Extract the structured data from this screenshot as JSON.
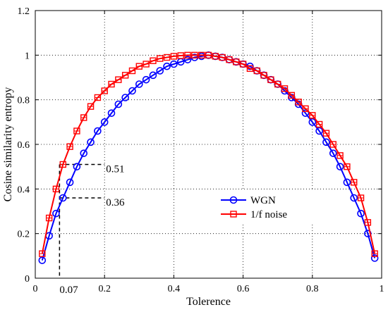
{
  "chart_data": {
    "type": "line",
    "title": "",
    "xlabel": "Tolerence",
    "ylabel": "Cosine similarity entropy",
    "xlim": [
      0,
      1
    ],
    "ylim": [
      0,
      1.2
    ],
    "xticks": [
      "0",
      "0.2",
      "0.4",
      "0.6",
      "0.8",
      "1"
    ],
    "yticks": [
      "0",
      "0.2",
      "0.4",
      "0.6",
      "0.8",
      "1",
      "1.2"
    ],
    "grid": true,
    "legend_position": "center-right",
    "series": [
      {
        "name": "WGN",
        "color": "#0000ff",
        "marker": "circle",
        "x": [
          0.02,
          0.04,
          0.06,
          0.08,
          0.1,
          0.12,
          0.14,
          0.16,
          0.18,
          0.2,
          0.22,
          0.24,
          0.26,
          0.28,
          0.3,
          0.32,
          0.34,
          0.36,
          0.38,
          0.4,
          0.42,
          0.44,
          0.46,
          0.48,
          0.5,
          0.52,
          0.54,
          0.56,
          0.58,
          0.6,
          0.62,
          0.64,
          0.66,
          0.68,
          0.7,
          0.72,
          0.74,
          0.76,
          0.78,
          0.8,
          0.82,
          0.84,
          0.86,
          0.88,
          0.9,
          0.92,
          0.94,
          0.96,
          0.98
        ],
        "y": [
          0.08,
          0.19,
          0.29,
          0.36,
          0.43,
          0.5,
          0.56,
          0.61,
          0.66,
          0.7,
          0.74,
          0.78,
          0.81,
          0.84,
          0.87,
          0.89,
          0.91,
          0.93,
          0.95,
          0.96,
          0.97,
          0.98,
          0.99,
          0.995,
          1.0,
          0.995,
          0.99,
          0.98,
          0.97,
          0.96,
          0.95,
          0.93,
          0.91,
          0.89,
          0.87,
          0.84,
          0.81,
          0.78,
          0.74,
          0.7,
          0.66,
          0.61,
          0.56,
          0.5,
          0.43,
          0.36,
          0.29,
          0.2,
          0.09
        ]
      },
      {
        "name": "1/f noise",
        "color": "#ff0000",
        "marker": "square",
        "x": [
          0.02,
          0.04,
          0.06,
          0.08,
          0.1,
          0.12,
          0.14,
          0.16,
          0.18,
          0.2,
          0.22,
          0.24,
          0.26,
          0.28,
          0.3,
          0.32,
          0.34,
          0.36,
          0.38,
          0.4,
          0.42,
          0.44,
          0.46,
          0.48,
          0.5,
          0.52,
          0.54,
          0.56,
          0.58,
          0.6,
          0.62,
          0.64,
          0.66,
          0.68,
          0.7,
          0.72,
          0.74,
          0.76,
          0.78,
          0.8,
          0.82,
          0.84,
          0.86,
          0.88,
          0.9,
          0.92,
          0.94,
          0.96,
          0.98
        ],
        "y": [
          0.11,
          0.27,
          0.4,
          0.51,
          0.59,
          0.66,
          0.72,
          0.77,
          0.81,
          0.84,
          0.87,
          0.89,
          0.91,
          0.93,
          0.95,
          0.96,
          0.975,
          0.985,
          0.99,
          0.995,
          0.998,
          1.0,
          1.0,
          1.0,
          1.0,
          0.995,
          0.99,
          0.98,
          0.97,
          0.96,
          0.94,
          0.93,
          0.91,
          0.89,
          0.87,
          0.85,
          0.82,
          0.79,
          0.76,
          0.73,
          0.69,
          0.65,
          0.6,
          0.55,
          0.5,
          0.43,
          0.36,
          0.25,
          0.11
        ]
      }
    ],
    "annotations": [
      {
        "text": "0.51",
        "x": 0.07,
        "y": 0.51
      },
      {
        "text": "0.36",
        "x": 0.07,
        "y": 0.36
      },
      {
        "text": "0.07",
        "x": 0.07,
        "y": 0
      }
    ]
  }
}
